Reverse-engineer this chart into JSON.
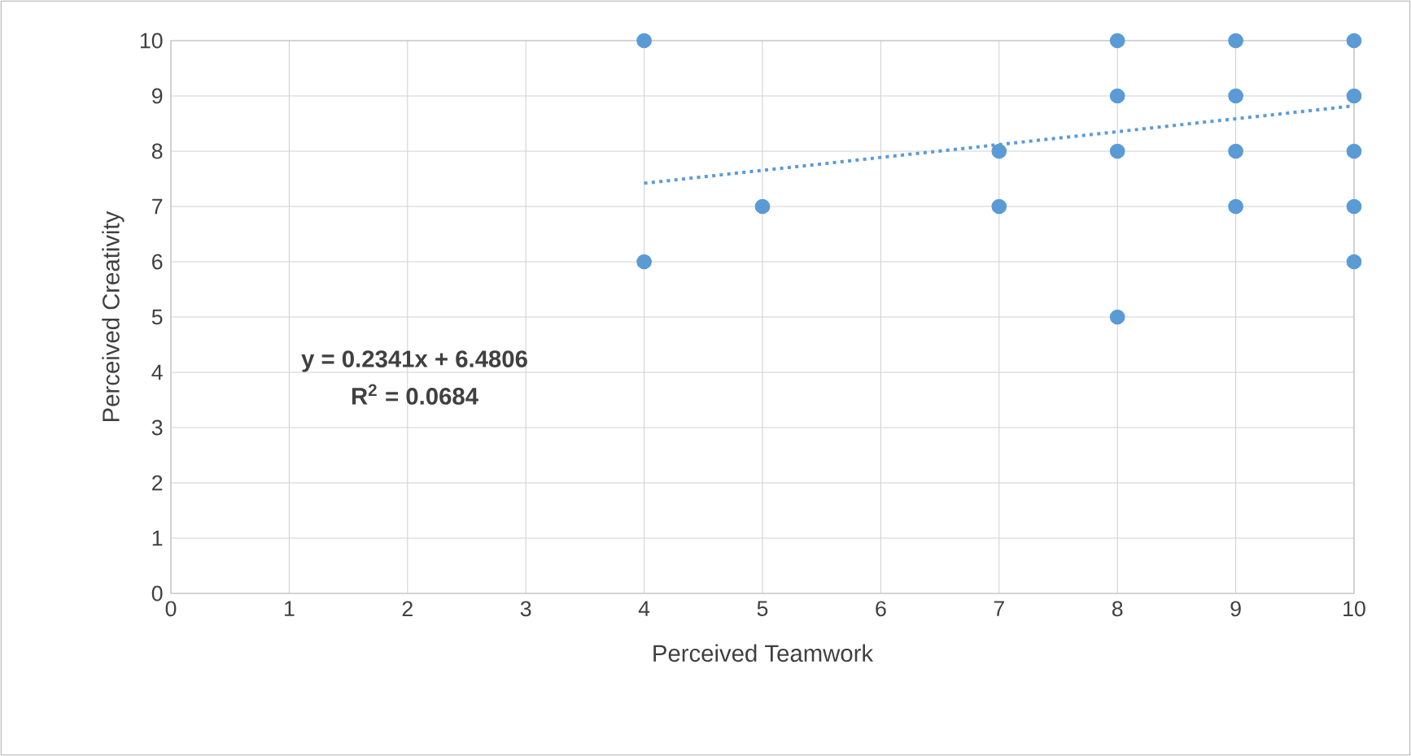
{
  "chart_data": {
    "type": "scatter",
    "xlabel": "Perceived Teamwork",
    "ylabel": "Perceived Creativity",
    "xlim": [
      0,
      10
    ],
    "ylim": [
      0,
      10
    ],
    "xticks": [
      0,
      1,
      2,
      3,
      4,
      5,
      6,
      7,
      8,
      9,
      10
    ],
    "yticks": [
      0,
      1,
      2,
      3,
      4,
      5,
      6,
      7,
      8,
      9,
      10
    ],
    "grid": true,
    "marker": "circle",
    "series": [
      {
        "color": "#5b9bd5",
        "x": [
          4,
          4,
          5,
          7,
          7,
          8,
          8,
          8,
          8,
          9,
          9,
          9,
          9,
          10,
          10,
          10,
          10,
          10
        ],
        "values": [
          10,
          6,
          7,
          8,
          7,
          10,
          9,
          8,
          5,
          10,
          9,
          8,
          7,
          10,
          9,
          8,
          7,
          6
        ]
      },
      {
        "type": "line",
        "color": "#5b9bd5",
        "line_style": "dotted",
        "marker": "none",
        "x": [
          4,
          10
        ],
        "values": [
          7.42,
          8.82
        ]
      }
    ],
    "annotations": [
      "y = 0.2341x + 6.4806",
      "R$^{2}$ = 0.0684"
    ]
  }
}
